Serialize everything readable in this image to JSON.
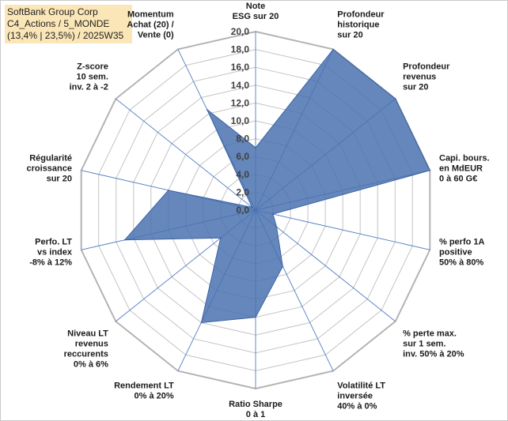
{
  "header": {
    "line1": "SoftBank Group Corp",
    "line2": "C4_Actions / 5_MONDE",
    "line3": "(13,4% | 23,5%) / 2025W35"
  },
  "chart_data": {
    "type": "radar",
    "title": "",
    "range": [
      0,
      20
    ],
    "ticks": [
      "0,0",
      "2,0",
      "4,0",
      "6,0",
      "8,0",
      "10,0",
      "12,0",
      "14,0",
      "16,0",
      "18,0",
      "20,0"
    ],
    "grid": true,
    "axes": [
      [
        "Note",
        "ESG sur 20"
      ],
      [
        "Profondeur",
        "historique",
        "sur 20"
      ],
      [
        "Profondeur",
        "revenus",
        "sur 20"
      ],
      [
        "Capi. bours.",
        "en MdEUR",
        "0 à 60 G€"
      ],
      [
        "% perfo 1A",
        "positive",
        "50% à 80%"
      ],
      [
        "% perte max.",
        "sur 1 sem.",
        "inv. 50% à 20%"
      ],
      [
        "Volatilité LT",
        "inversée",
        "40% à 0%"
      ],
      [
        "Ratio Sharpe",
        "0 à 1"
      ],
      [
        "Rendement LT",
        "0% à 20%"
      ],
      [
        "Niveau LT",
        "revenus",
        "reccurents",
        "0% à 6%"
      ],
      [
        "Perfo. LT",
        "vs index",
        "-8% à 12%"
      ],
      [
        "Régularité",
        "croissance",
        "sur 20"
      ],
      [
        "Z-score",
        "10 sem.",
        "inv. 2 à -2"
      ],
      [
        "Momentum",
        "Achat (20) /",
        "Vente (0)"
      ]
    ],
    "series": [
      {
        "name": "",
        "color": "#4a72b0",
        "values": [
          7,
          20,
          20,
          20,
          2,
          3,
          7,
          12,
          14,
          5,
          15,
          10,
          0.5,
          12.5
        ]
      }
    ]
  }
}
